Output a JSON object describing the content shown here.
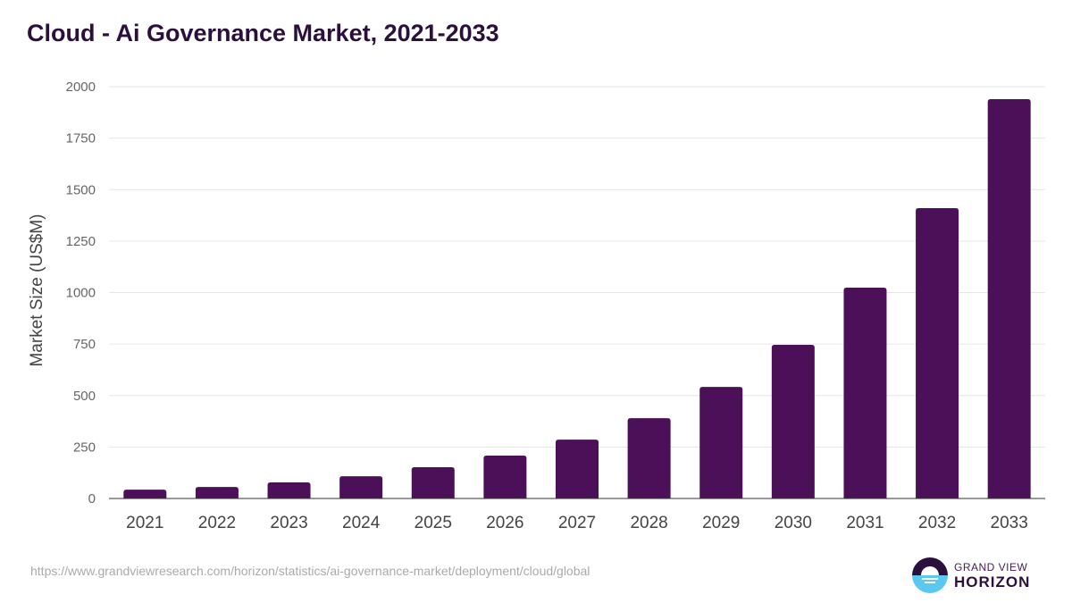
{
  "title": "Cloud - Ai Governance Market, 2021-2033",
  "source_url": "https://www.grandviewresearch.com/horizon/statistics/ai-governance-market/deployment/cloud/global",
  "logo": {
    "line1": "GRAND VIEW",
    "line2": "HORIZON"
  },
  "colors": {
    "bar": "#4b1058",
    "title": "#2b0f3d",
    "logo_dark": "#2b0f3d",
    "logo_light": "#5bc8f0"
  },
  "chart_data": {
    "type": "bar",
    "title": "Cloud - Ai Governance Market, 2021-2033",
    "xlabel": "",
    "ylabel": "Market Size (US$M)",
    "ylim": [
      0,
      2000
    ],
    "yticks": [
      0,
      250,
      500,
      750,
      1000,
      1250,
      1500,
      1750,
      2000
    ],
    "grid": true,
    "categories": [
      "2021",
      "2022",
      "2023",
      "2024",
      "2025",
      "2026",
      "2027",
      "2028",
      "2029",
      "2030",
      "2031",
      "2032",
      "2033"
    ],
    "values": [
      43,
      56,
      78,
      108,
      152,
      208,
      286,
      390,
      542,
      746,
      1024,
      1410,
      1939
    ]
  }
}
